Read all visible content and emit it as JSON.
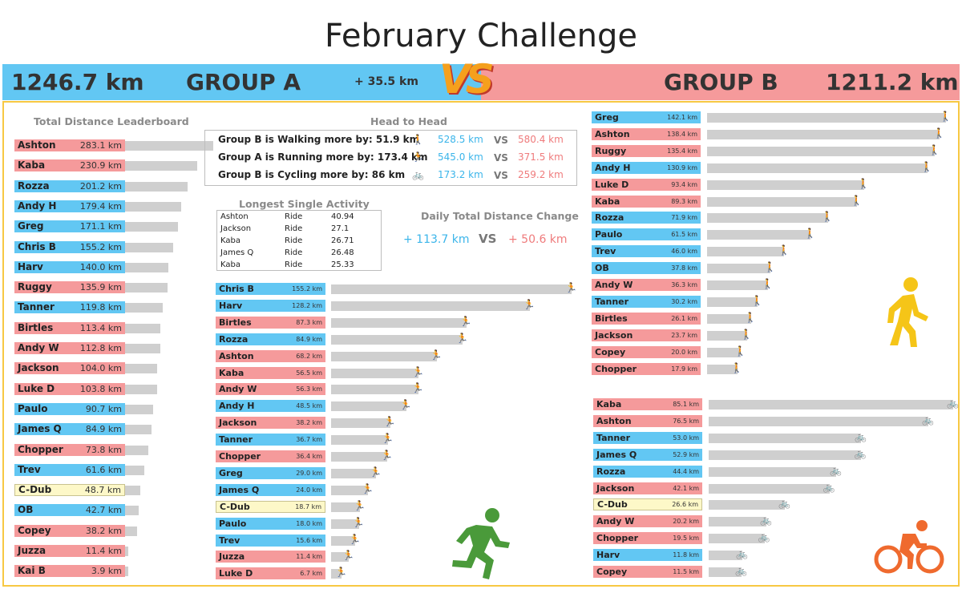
{
  "title": "February Challenge",
  "banner": {
    "group_a_km": "1246.7 km",
    "group_a": "GROUP A",
    "difference": "+ 35.5 km",
    "vs": "VS",
    "group_b": "GROUP B",
    "group_b_km": "1211.2 km"
  },
  "colors": {
    "group_a": "#62c7f3",
    "group_b": "#f59a9b",
    "neutral": "#fdf8c8",
    "bar": "#cfcfcf",
    "walk": "#f5c518",
    "run": "#4a9a3a",
    "cycle": "#ef6a2e",
    "frame": "#f7c843"
  },
  "leaderboard": {
    "title": "Total Distance Leaderboard",
    "rows": [
      {
        "name": "Ashton",
        "value": "283.1 km",
        "group": "B",
        "km": 283.1
      },
      {
        "name": "Kaba",
        "value": "230.9 km",
        "group": "B",
        "km": 230.9
      },
      {
        "name": "Rozza",
        "value": "201.2 km",
        "group": "A",
        "km": 201.2
      },
      {
        "name": "Andy H",
        "value": "179.4 km",
        "group": "A",
        "km": 179.4
      },
      {
        "name": "Greg",
        "value": "171.1 km",
        "group": "A",
        "km": 171.1
      },
      {
        "name": "Chris B",
        "value": "155.2 km",
        "group": "A",
        "km": 155.2
      },
      {
        "name": "Harv",
        "value": "140.0 km",
        "group": "A",
        "km": 140.0
      },
      {
        "name": "Ruggy",
        "value": "135.9 km",
        "group": "B",
        "km": 135.9
      },
      {
        "name": "Tanner",
        "value": "119.8 km",
        "group": "A",
        "km": 119.8
      },
      {
        "name": "Birtles",
        "value": "113.4 km",
        "group": "B",
        "km": 113.4
      },
      {
        "name": "Andy W",
        "value": "112.8 km",
        "group": "B",
        "km": 112.8
      },
      {
        "name": "Jackson",
        "value": "104.0 km",
        "group": "B",
        "km": 104.0
      },
      {
        "name": "Luke D",
        "value": "103.8 km",
        "group": "B",
        "km": 103.8
      },
      {
        "name": "Paulo",
        "value": "90.7 km",
        "group": "A",
        "km": 90.7
      },
      {
        "name": "James Q",
        "value": "84.9 km",
        "group": "A",
        "km": 84.9
      },
      {
        "name": "Chopper",
        "value": "73.8 km",
        "group": "B",
        "km": 73.8
      },
      {
        "name": "Trev",
        "value": "61.6 km",
        "group": "A",
        "km": 61.6
      },
      {
        "name": "C-Dub",
        "value": "48.7 km",
        "group": "C",
        "km": 48.7
      },
      {
        "name": "OB",
        "value": "42.7 km",
        "group": "A",
        "km": 42.7
      },
      {
        "name": "Copey",
        "value": "38.2 km",
        "group": "B",
        "km": 38.2
      },
      {
        "name": "Juzza",
        "value": "11.4 km",
        "group": "B",
        "km": 11.4
      },
      {
        "name": "Kai B",
        "value": "3.9 km",
        "group": "B",
        "km": 3.9
      }
    ]
  },
  "head_to_head": {
    "title": "Head to Head",
    "rows": [
      {
        "text": "Group B is Walking more by: 51.9 km",
        "a": "528.5 km",
        "vs": "VS",
        "b": "580.4 km",
        "icon": "walk-icon"
      },
      {
        "text": "Group A is Running more by: 173.4 km",
        "a": "545.0 km",
        "vs": "VS",
        "b": "371.5 km",
        "icon": "run-icon"
      },
      {
        "text": "Group B is Cycling more by: 86 km",
        "a": "173.2 km",
        "vs": "VS",
        "b": "259.2 km",
        "icon": "bike-icon"
      }
    ]
  },
  "longest_activity": {
    "title": "Longest Single Activity",
    "rows": [
      {
        "name": "Ashton",
        "type": "Ride",
        "value": "40.94"
      },
      {
        "name": "Jackson",
        "type": "Ride",
        "value": "27.1"
      },
      {
        "name": "Kaba",
        "type": "Ride",
        "value": "26.71"
      },
      {
        "name": "James Q",
        "type": "Ride",
        "value": "26.48"
      },
      {
        "name": "Kaba",
        "type": "Ride",
        "value": "25.33"
      }
    ]
  },
  "daily_change": {
    "title": "Daily Total Distance Change",
    "a": "+ 113.7 km",
    "vs": "VS",
    "b": "+ 50.6 km"
  },
  "running": {
    "rows": [
      {
        "name": "Chris B",
        "value": "155.2 km",
        "group": "A",
        "km": 155.2
      },
      {
        "name": "Harv",
        "value": "128.2 km",
        "group": "A",
        "km": 128.2
      },
      {
        "name": "Birtles",
        "value": "87.3 km",
        "group": "B",
        "km": 87.3
      },
      {
        "name": "Rozza",
        "value": "84.9 km",
        "group": "A",
        "km": 84.9
      },
      {
        "name": "Ashton",
        "value": "68.2 km",
        "group": "B",
        "km": 68.2
      },
      {
        "name": "Kaba",
        "value": "56.5 km",
        "group": "B",
        "km": 56.5
      },
      {
        "name": "Andy W",
        "value": "56.3 km",
        "group": "B",
        "km": 56.3
      },
      {
        "name": "Andy H",
        "value": "48.5 km",
        "group": "A",
        "km": 48.5
      },
      {
        "name": "Jackson",
        "value": "38.2 km",
        "group": "B",
        "km": 38.2
      },
      {
        "name": "Tanner",
        "value": "36.7 km",
        "group": "A",
        "km": 36.7
      },
      {
        "name": "Chopper",
        "value": "36.4 km",
        "group": "B",
        "km": 36.4
      },
      {
        "name": "Greg",
        "value": "29.0 km",
        "group": "A",
        "km": 29.0
      },
      {
        "name": "James Q",
        "value": "24.0 km",
        "group": "A",
        "km": 24.0
      },
      {
        "name": "C-Dub",
        "value": "18.7 km",
        "group": "C",
        "km": 18.7
      },
      {
        "name": "Paulo",
        "value": "18.0 km",
        "group": "A",
        "km": 18.0
      },
      {
        "name": "Trev",
        "value": "15.6 km",
        "group": "A",
        "km": 15.6
      },
      {
        "name": "Juzza",
        "value": "11.4 km",
        "group": "B",
        "km": 11.4
      },
      {
        "name": "Luke D",
        "value": "6.7 km",
        "group": "B",
        "km": 6.7
      }
    ]
  },
  "walking": {
    "rows": [
      {
        "name": "Greg",
        "value": "142.1 km",
        "group": "A",
        "km": 142.1
      },
      {
        "name": "Ashton",
        "value": "138.4 km",
        "group": "B",
        "km": 138.4
      },
      {
        "name": "Ruggy",
        "value": "135.4 km",
        "group": "B",
        "km": 135.4
      },
      {
        "name": "Andy H",
        "value": "130.9 km",
        "group": "A",
        "km": 130.9
      },
      {
        "name": "Luke D",
        "value": "93.4 km",
        "group": "B",
        "km": 93.4
      },
      {
        "name": "Kaba",
        "value": "89.3 km",
        "group": "B",
        "km": 89.3
      },
      {
        "name": "Rozza",
        "value": "71.9 km",
        "group": "A",
        "km": 71.9
      },
      {
        "name": "Paulo",
        "value": "61.5 km",
        "group": "A",
        "km": 61.5
      },
      {
        "name": "Trev",
        "value": "46.0 km",
        "group": "A",
        "km": 46.0
      },
      {
        "name": "OB",
        "value": "37.8 km",
        "group": "A",
        "km": 37.8
      },
      {
        "name": "Andy W",
        "value": "36.3 km",
        "group": "B",
        "km": 36.3
      },
      {
        "name": "Tanner",
        "value": "30.2 km",
        "group": "A",
        "km": 30.2
      },
      {
        "name": "Birtles",
        "value": "26.1 km",
        "group": "B",
        "km": 26.1
      },
      {
        "name": "Jackson",
        "value": "23.7 km",
        "group": "B",
        "km": 23.7
      },
      {
        "name": "Copey",
        "value": "20.0 km",
        "group": "B",
        "km": 20.0
      },
      {
        "name": "Chopper",
        "value": "17.9 km",
        "group": "B",
        "km": 17.9
      }
    ]
  },
  "cycling": {
    "rows": [
      {
        "name": "Kaba",
        "value": "85.1 km",
        "group": "B",
        "km": 85.1
      },
      {
        "name": "Ashton",
        "value": "76.5 km",
        "group": "B",
        "km": 76.5
      },
      {
        "name": "Tanner",
        "value": "53.0 km",
        "group": "A",
        "km": 53.0
      },
      {
        "name": "James Q",
        "value": "52.9 km",
        "group": "A",
        "km": 52.9
      },
      {
        "name": "Rozza",
        "value": "44.4 km",
        "group": "A",
        "km": 44.4
      },
      {
        "name": "Jackson",
        "value": "42.1 km",
        "group": "B",
        "km": 42.1
      },
      {
        "name": "C-Dub",
        "value": "26.6 km",
        "group": "C",
        "km": 26.6
      },
      {
        "name": "Andy W",
        "value": "20.2 km",
        "group": "B",
        "km": 20.2
      },
      {
        "name": "Chopper",
        "value": "19.5 km",
        "group": "B",
        "km": 19.5
      },
      {
        "name": "Harv",
        "value": "11.8 km",
        "group": "A",
        "km": 11.8
      },
      {
        "name": "Copey",
        "value": "11.5 km",
        "group": "B",
        "km": 11.5
      }
    ]
  }
}
